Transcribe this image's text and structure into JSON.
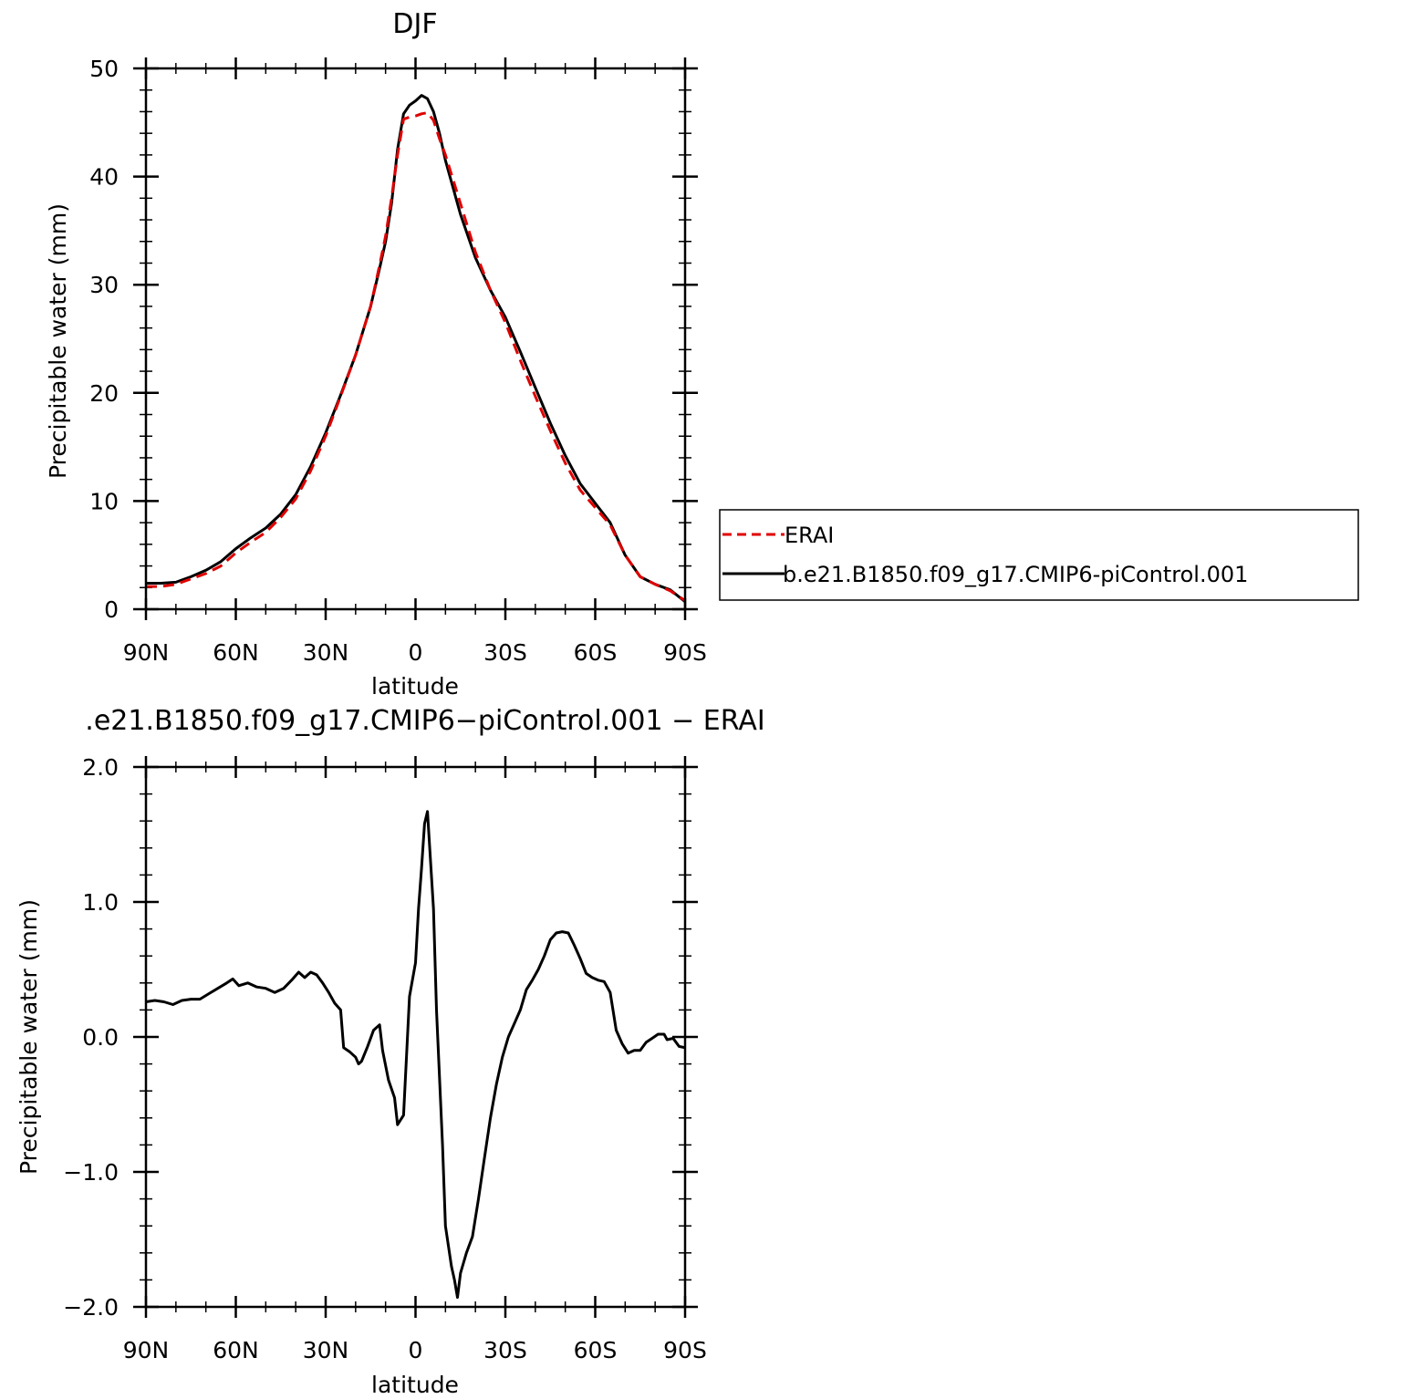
{
  "chart_data": [
    {
      "type": "line",
      "title": "DJF",
      "xlabel": "latitude",
      "ylabel": "Precipitable water (mm)",
      "xlim": [
        90,
        -90
      ],
      "ylim": [
        0,
        50
      ],
      "x_tick_values": [
        90,
        60,
        30,
        0,
        -30,
        -60,
        -90
      ],
      "x_tick_labels": [
        "90N",
        "60N",
        "30N",
        "0",
        "30S",
        "60S",
        "90S"
      ],
      "y_ticks": [
        0,
        10,
        20,
        30,
        40,
        50
      ],
      "y_tick_labels": [
        "0",
        "10",
        "20",
        "30",
        "40",
        "50"
      ],
      "legend_position": "right-outside",
      "series": [
        {
          "name": "ERAI",
          "color": "#e00000",
          "style": "dashed",
          "points": [
            [
              90,
              2.1
            ],
            [
              85,
              2.1
            ],
            [
              80,
              2.3
            ],
            [
              75,
              2.8
            ],
            [
              70,
              3.3
            ],
            [
              65,
              4.0
            ],
            [
              60,
              5.2
            ],
            [
              55,
              6.2
            ],
            [
              50,
              7.1
            ],
            [
              45,
              8.5
            ],
            [
              40,
              10.2
            ],
            [
              35,
              12.8
            ],
            [
              30,
              16.0
            ],
            [
              25,
              19.7
            ],
            [
              20,
              23.5
            ],
            [
              15,
              28.0
            ],
            [
              12,
              31.8
            ],
            [
              10,
              34.5
            ],
            [
              8,
              38.0
            ],
            [
              6,
              42.0
            ],
            [
              4,
              45.3
            ],
            [
              2,
              45.5
            ],
            [
              0,
              45.6
            ],
            [
              -2,
              45.8
            ],
            [
              -4,
              45.9
            ],
            [
              -6,
              45.2
            ],
            [
              -8,
              43.5
            ],
            [
              -10,
              42.0
            ],
            [
              -15,
              37.5
            ],
            [
              -20,
              33.0
            ],
            [
              -25,
              29.5
            ],
            [
              -30,
              26.5
            ],
            [
              -35,
              23.0
            ],
            [
              -40,
              19.7
            ],
            [
              -45,
              16.5
            ],
            [
              -50,
              13.5
            ],
            [
              -55,
              11.0
            ],
            [
              -60,
              9.4
            ],
            [
              -65,
              7.8
            ],
            [
              -70,
              5.0
            ],
            [
              -75,
              3.0
            ],
            [
              -80,
              2.3
            ],
            [
              -85,
              1.7
            ],
            [
              -90,
              0.8
            ]
          ]
        },
        {
          "name": "b.e21.B1850.f09_g17.CMIP6-piControl.001",
          "color": "#000000",
          "style": "solid",
          "points": [
            [
              90,
              2.4
            ],
            [
              85,
              2.4
            ],
            [
              80,
              2.5
            ],
            [
              75,
              3.0
            ],
            [
              70,
              3.6
            ],
            [
              65,
              4.4
            ],
            [
              60,
              5.6
            ],
            [
              55,
              6.6
            ],
            [
              50,
              7.5
            ],
            [
              45,
              8.8
            ],
            [
              40,
              10.6
            ],
            [
              35,
              13.2
            ],
            [
              30,
              16.3
            ],
            [
              25,
              19.8
            ],
            [
              20,
              23.5
            ],
            [
              15,
              28.0
            ],
            [
              12,
              31.5
            ],
            [
              10,
              34.0
            ],
            [
              8,
              37.5
            ],
            [
              6,
              42.5
            ],
            [
              4,
              45.8
            ],
            [
              2,
              46.6
            ],
            [
              0,
              47.0
            ],
            [
              -2,
              47.5
            ],
            [
              -4,
              47.2
            ],
            [
              -6,
              46.0
            ],
            [
              -8,
              44.0
            ],
            [
              -10,
              41.5
            ],
            [
              -15,
              36.5
            ],
            [
              -20,
              32.5
            ],
            [
              -25,
              29.5
            ],
            [
              -30,
              27.0
            ],
            [
              -35,
              23.8
            ],
            [
              -40,
              20.5
            ],
            [
              -45,
              17.2
            ],
            [
              -50,
              14.2
            ],
            [
              -55,
              11.6
            ],
            [
              -60,
              9.8
            ],
            [
              -65,
              8.0
            ],
            [
              -70,
              5.0
            ],
            [
              -75,
              3.0
            ],
            [
              -80,
              2.3
            ],
            [
              -85,
              1.8
            ],
            [
              -90,
              0.7
            ]
          ]
        }
      ]
    },
    {
      "type": "line",
      "title": ".e21.B1850.f09_g17.CMIP6−piControl.001 − ERAI",
      "xlabel": "latitude",
      "ylabel": "Precipitable water (mm)",
      "xlim": [
        90,
        -90
      ],
      "ylim": [
        -2.0,
        2.0
      ],
      "x_tick_values": [
        90,
        60,
        30,
        0,
        -30,
        -60,
        -90
      ],
      "x_tick_labels": [
        "90N",
        "60N",
        "30N",
        "0",
        "30S",
        "60S",
        "90S"
      ],
      "y_ticks": [
        2.0,
        1.0,
        0.0,
        -1.0,
        -2.0
      ],
      "y_tick_labels": [
        "2.0",
        "1.0",
        "0.0",
        "−1.0",
        "−2.0"
      ],
      "series": [
        {
          "color": "#000000",
          "style": "solid",
          "points": [
            [
              90,
              0.26
            ],
            [
              87,
              0.27
            ],
            [
              84,
              0.26
            ],
            [
              81,
              0.24
            ],
            [
              78,
              0.27
            ],
            [
              75,
              0.28
            ],
            [
              72,
              0.28
            ],
            [
              69,
              0.32
            ],
            [
              66,
              0.36
            ],
            [
              63,
              0.4
            ],
            [
              61,
              0.43
            ],
            [
              59,
              0.38
            ],
            [
              56,
              0.4
            ],
            [
              53,
              0.37
            ],
            [
              50,
              0.36
            ],
            [
              47,
              0.33
            ],
            [
              44,
              0.36
            ],
            [
              41,
              0.43
            ],
            [
              39,
              0.48
            ],
            [
              37,
              0.44
            ],
            [
              35,
              0.48
            ],
            [
              33,
              0.46
            ],
            [
              31,
              0.4
            ],
            [
              29,
              0.33
            ],
            [
              27,
              0.25
            ],
            [
              25,
              0.2
            ],
            [
              24,
              -0.08
            ],
            [
              22,
              -0.11
            ],
            [
              20,
              -0.15
            ],
            [
              19,
              -0.2
            ],
            [
              18,
              -0.18
            ],
            [
              16,
              -0.07
            ],
            [
              14,
              0.05
            ],
            [
              12,
              0.09
            ],
            [
              11,
              -0.1
            ],
            [
              9,
              -0.32
            ],
            [
              7,
              -0.45
            ],
            [
              6,
              -0.65
            ],
            [
              4,
              -0.58
            ],
            [
              2,
              0.3
            ],
            [
              0,
              0.55
            ],
            [
              -1,
              0.95
            ],
            [
              -2,
              1.25
            ],
            [
              -3,
              1.58
            ],
            [
              -4,
              1.67
            ],
            [
              -6,
              0.95
            ],
            [
              -7,
              0.2
            ],
            [
              -9,
              -0.8
            ],
            [
              -10,
              -1.4
            ],
            [
              -12,
              -1.7
            ],
            [
              -13,
              -1.8
            ],
            [
              -14,
              -1.93
            ],
            [
              -15,
              -1.75
            ],
            [
              -17,
              -1.6
            ],
            [
              -19,
              -1.48
            ],
            [
              -21,
              -1.2
            ],
            [
              -23,
              -0.9
            ],
            [
              -25,
              -0.6
            ],
            [
              -27,
              -0.35
            ],
            [
              -29,
              -0.15
            ],
            [
              -31,
              0.0
            ],
            [
              -33,
              0.1
            ],
            [
              -35,
              0.2
            ],
            [
              -37,
              0.35
            ],
            [
              -39,
              0.42
            ],
            [
              -41,
              0.5
            ],
            [
              -43,
              0.6
            ],
            [
              -45,
              0.72
            ],
            [
              -47,
              0.77
            ],
            [
              -49,
              0.78
            ],
            [
              -51,
              0.77
            ],
            [
              -53,
              0.68
            ],
            [
              -55,
              0.58
            ],
            [
              -57,
              0.47
            ],
            [
              -59,
              0.44
            ],
            [
              -61,
              0.42
            ],
            [
              -63,
              0.41
            ],
            [
              -65,
              0.33
            ],
            [
              -67,
              0.05
            ],
            [
              -69,
              -0.05
            ],
            [
              -71,
              -0.12
            ],
            [
              -73,
              -0.1
            ],
            [
              -75,
              -0.1
            ],
            [
              -77,
              -0.04
            ],
            [
              -79,
              -0.01
            ],
            [
              -81,
              0.02
            ],
            [
              -83,
              0.02
            ],
            [
              -84,
              -0.02
            ],
            [
              -86,
              -0.01
            ],
            [
              -88,
              -0.07
            ],
            [
              -90,
              -0.08
            ]
          ]
        }
      ]
    }
  ]
}
